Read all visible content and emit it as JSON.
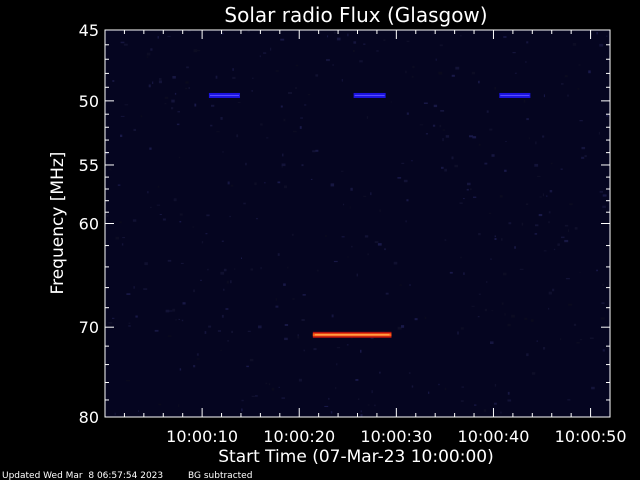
{
  "chart_data": {
    "type": "heatmap",
    "title": "Solar radio Flux (Glasgow)",
    "xlabel": "Start Time (07-Mar-23 10:00:00)",
    "ylabel": "Frequency [MHz]",
    "x_unit": "seconds after 10:00:00",
    "x_range": [
      0,
      52
    ],
    "y_range": [
      45,
      80
    ],
    "y_scale": "log",
    "y_ticks": [
      45,
      50,
      55,
      60,
      70,
      80
    ],
    "y_tick_labels": [
      "45",
      "50",
      "55",
      "60",
      "70",
      "80"
    ],
    "x_ticks": [
      10,
      20,
      30,
      40,
      50
    ],
    "x_tick_labels": [
      "10:00:10",
      "10:00:20",
      "10:00:30",
      "10:00:40",
      "10:00:50"
    ],
    "background_color": "#050520",
    "features": [
      {
        "x_start": 10.7,
        "x_end": 13.9,
        "freq": 49.6,
        "intensity": "low",
        "color": "#1b14e0"
      },
      {
        "x_start": 25.6,
        "x_end": 28.9,
        "freq": 49.6,
        "intensity": "low",
        "color": "#1b14e0"
      },
      {
        "x_start": 40.6,
        "x_end": 43.8,
        "freq": 49.6,
        "intensity": "low",
        "color": "#1b14e0"
      },
      {
        "x_start": 21.4,
        "x_end": 29.5,
        "freq": 70.8,
        "intensity": "high",
        "color": "#ff5a14"
      }
    ]
  },
  "footer": {
    "updated": "Updated Wed Mar  8 06:57:54 2023",
    "note": "BG subtracted"
  }
}
